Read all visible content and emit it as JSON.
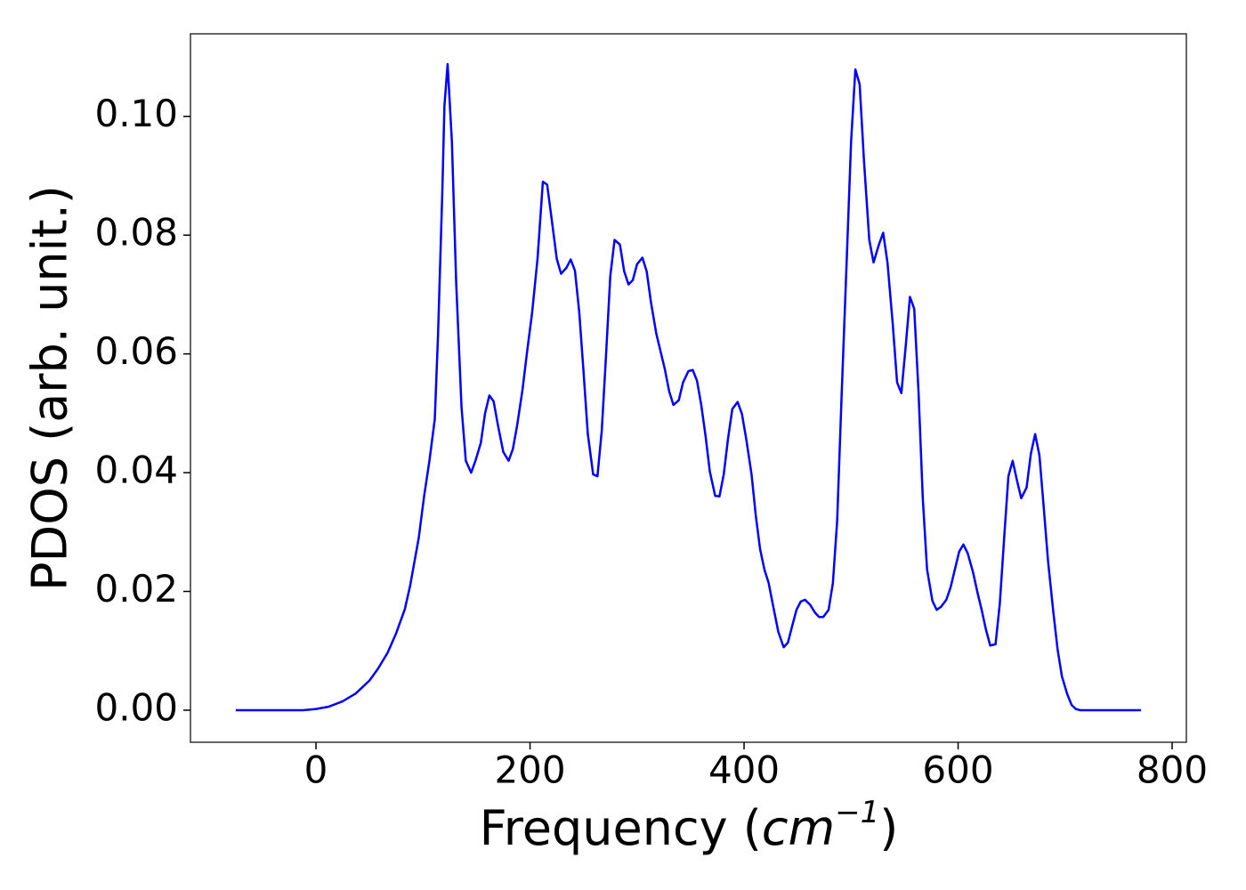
{
  "chart_data": {
    "type": "line",
    "x_label": [
      "Frequency (",
      "cm",
      "−1",
      ")"
    ],
    "y_label": "PDOS (arb. unit.)",
    "x": [
      -75,
      -50,
      -25,
      -12,
      0,
      12,
      25,
      37,
      50,
      58,
      67,
      75,
      83,
      88,
      91,
      96,
      101,
      106,
      111,
      114,
      118,
      120,
      123,
      127,
      131,
      136,
      140,
      145,
      149,
      154,
      158,
      162,
      166,
      170,
      175,
      180,
      184,
      188,
      193,
      197,
      202,
      207,
      212,
      216,
      220,
      225,
      229,
      234,
      238,
      242,
      246,
      250,
      254,
      259,
      263,
      267,
      271,
      275,
      279,
      284,
      288,
      292,
      296,
      300,
      305,
      309,
      313,
      318,
      322,
      326,
      330,
      334,
      339,
      343,
      348,
      352,
      356,
      360,
      364,
      368,
      373,
      377,
      381,
      385,
      389,
      394,
      398,
      402,
      407,
      411,
      415,
      419,
      423,
      427,
      432,
      437,
      441,
      445,
      449,
      453,
      457,
      462,
      466,
      470,
      474,
      479,
      483,
      487,
      491,
      496,
      500,
      504,
      508,
      512,
      517,
      521,
      526,
      530,
      534,
      539,
      543,
      547,
      551,
      555,
      559,
      563,
      567,
      571,
      576,
      580,
      584,
      589,
      593,
      597,
      601,
      605,
      609,
      614,
      618,
      622,
      626,
      630,
      635,
      639,
      643,
      647,
      651,
      655,
      659,
      664,
      668,
      672,
      676,
      680,
      684,
      689,
      693,
      697,
      702,
      706,
      710,
      714,
      740,
      771
    ],
    "series": [
      {
        "name": "PDOS",
        "color": "#0000ff",
        "values": [
          0,
          0,
          0,
          0,
          0.0002,
          0.0006,
          0.0015,
          0.0028,
          0.005,
          0.007,
          0.0097,
          0.013,
          0.017,
          0.021,
          0.024,
          0.029,
          0.036,
          0.042,
          0.049,
          0.063,
          0.087,
          0.1017,
          0.1088,
          0.0957,
          0.072,
          0.051,
          0.042,
          0.04,
          0.042,
          0.045,
          0.05,
          0.053,
          0.052,
          0.048,
          0.0435,
          0.042,
          0.044,
          0.048,
          0.054,
          0.06,
          0.067,
          0.076,
          0.089,
          0.0885,
          0.083,
          0.076,
          0.0735,
          0.0745,
          0.0759,
          0.074,
          0.067,
          0.057,
          0.0465,
          0.0397,
          0.0394,
          0.047,
          0.0597,
          0.0731,
          0.0792,
          0.0784,
          0.0739,
          0.0717,
          0.0724,
          0.0751,
          0.0762,
          0.0739,
          0.0687,
          0.0634,
          0.0604,
          0.0574,
          0.0537,
          0.0514,
          0.0522,
          0.0552,
          0.0571,
          0.0573,
          0.0555,
          0.0514,
          0.0462,
          0.0402,
          0.0361,
          0.036,
          0.0397,
          0.0457,
          0.0507,
          0.0519,
          0.0499,
          0.0457,
          0.0397,
          0.0327,
          0.0271,
          0.0237,
          0.0214,
          0.0177,
          0.0132,
          0.0106,
          0.0114,
          0.0142,
          0.0169,
          0.0183,
          0.0186,
          0.0177,
          0.0165,
          0.0157,
          0.0157,
          0.0169,
          0.0214,
          0.0319,
          0.0522,
          0.0762,
          0.0957,
          0.1079,
          0.1054,
          0.0927,
          0.0792,
          0.0754,
          0.0784,
          0.0804,
          0.0754,
          0.0649,
          0.0552,
          0.0534,
          0.0612,
          0.0696,
          0.0676,
          0.0537,
          0.0357,
          0.0237,
          0.0184,
          0.0169,
          0.0174,
          0.0186,
          0.0207,
          0.0237,
          0.0267,
          0.0279,
          0.0264,
          0.0232,
          0.0199,
          0.0169,
          0.0136,
          0.0109,
          0.0111,
          0.018,
          0.0289,
          0.0394,
          0.042,
          0.0387,
          0.0357,
          0.0375,
          0.0432,
          0.0465,
          0.0429,
          0.0342,
          0.0252,
          0.0165,
          0.0102,
          0.0057,
          0.0027,
          0.0009,
          0.0002,
          0,
          0,
          0
        ]
      }
    ],
    "xlim": [
      -117.3,
      813.3
    ],
    "ylim": [
      -0.0054,
      0.1139
    ],
    "xticks": [
      0,
      200,
      400,
      600,
      800
    ],
    "yticks": [
      {
        "value": 0,
        "label": "0.00"
      },
      0.02,
      0.04,
      0.06,
      0.08,
      {
        "value": 0.1,
        "label": "0.10"
      }
    ],
    "grid": false
  }
}
